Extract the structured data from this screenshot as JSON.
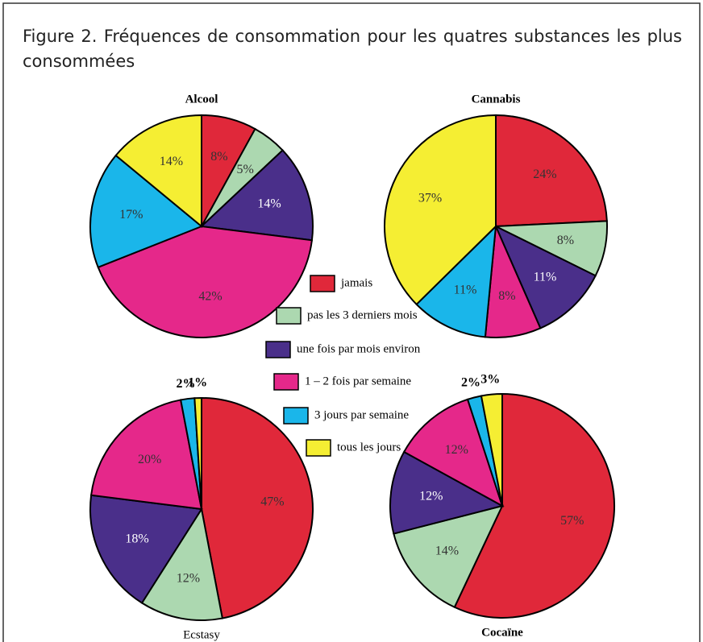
{
  "title": "Figure 2. Fréquences de consommation pour les quatres substances les plus consommées",
  "legend": {
    "labels": [
      "jamais",
      "pas les 3 derniers mois",
      "une fois par mois environ",
      "1 – 2 fois par semaine",
      "3 jours par semaine",
      "tous les jours"
    ],
    "colors": [
      "#e0283a",
      "#acd8b0",
      "#4a2f8a",
      "#e5288a",
      "#1ab6ea",
      "#f5ee33"
    ]
  },
  "chart_data": [
    {
      "type": "pie",
      "title": "Alcool",
      "values": [
        8,
        5,
        14,
        42,
        17,
        14
      ],
      "value_labels": [
        "8%",
        "5%",
        "14%",
        "42%",
        "17%",
        "14%"
      ]
    },
    {
      "type": "pie",
      "title": "Cannabis",
      "values": [
        24,
        8,
        11,
        8,
        11,
        37
      ],
      "value_labels": [
        "24%",
        "8%",
        "11%",
        "8%",
        "11%",
        "37%"
      ]
    },
    {
      "type": "pie",
      "title": "Ecstasy",
      "values": [
        47,
        12,
        18,
        20,
        2,
        1
      ],
      "value_labels": [
        "47%",
        "12%",
        "18%",
        "20%",
        "2%",
        "1%"
      ]
    },
    {
      "type": "pie",
      "title": "Cocaïne",
      "values": [
        57,
        14,
        12,
        12,
        2,
        3
      ],
      "value_labels": [
        "57%",
        "14%",
        "12%",
        "12%",
        "2%",
        "3%"
      ]
    }
  ]
}
